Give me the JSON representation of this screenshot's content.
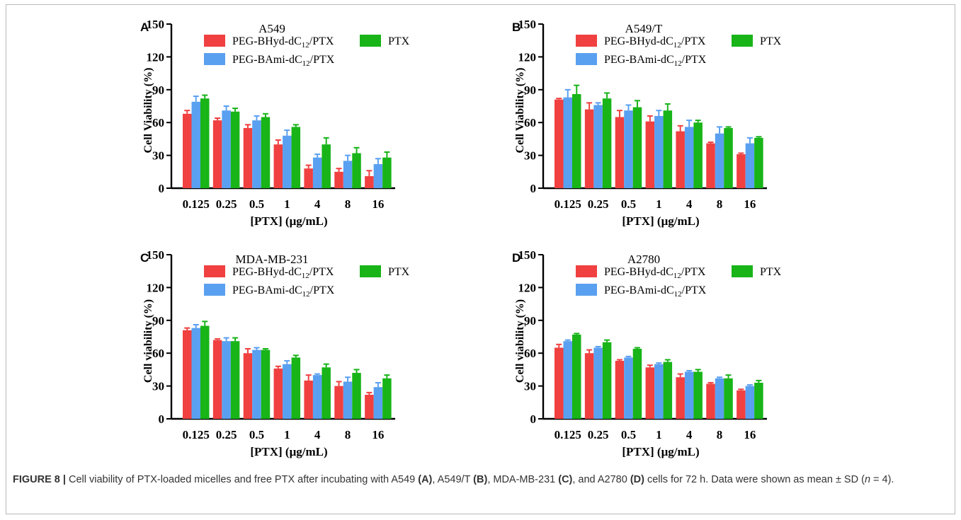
{
  "figure": {
    "caption_label": "FIGURE 8 |",
    "caption_parts": [
      {
        "text": " Cell viability of PTX-loaded micelles and free PTX after incubating with A549 ",
        "bold": false
      },
      {
        "text": "(A)",
        "bold": true
      },
      {
        "text": ", A549/T ",
        "bold": false
      },
      {
        "text": "(B)",
        "bold": true
      },
      {
        "text": ", MDA-MB-231 ",
        "bold": false
      },
      {
        "text": "(C)",
        "bold": true
      },
      {
        "text": ", and A2780 ",
        "bold": false
      },
      {
        "text": "(D)",
        "bold": true
      },
      {
        "text": " cells for 72 h. Data were shown as mean ± SD (",
        "bold": false
      },
      {
        "text": "n",
        "italic": true
      },
      {
        "text": " = 4).",
        "bold": false
      }
    ]
  },
  "colors": {
    "PEG-BHyd-dC12/PTX": "#f04040",
    "PEG-BAmi-dC12/PTX": "#5aa0f0",
    "PTX": "#18b418"
  },
  "chart_data": [
    {
      "type": "bar",
      "panel_letter": "A",
      "title": "A549",
      "xlabel": "[PTX] (μg/mL)",
      "ylabel": "Cell Viability (%)",
      "ylim": [
        0,
        150
      ],
      "yticks": [
        0,
        30,
        60,
        90,
        120,
        150
      ],
      "categories": [
        "0.125",
        "0.25",
        "0.5",
        "1",
        "4",
        "8",
        "16"
      ],
      "series": [
        {
          "name": "PEG-BHyd-dC12/PTX",
          "values": [
            68,
            62,
            55,
            40,
            18,
            15,
            11
          ],
          "errors": [
            3,
            2,
            3,
            4,
            3,
            3,
            5
          ]
        },
        {
          "name": "PEG-BAmi-dC12/PTX",
          "values": [
            79,
            71,
            62,
            48,
            28,
            25,
            22
          ],
          "errors": [
            5,
            4,
            4,
            5,
            3,
            5,
            5
          ]
        },
        {
          "name": "PTX",
          "values": [
            82,
            70,
            65,
            56,
            40,
            32,
            28
          ],
          "errors": [
            3,
            3,
            3,
            2,
            6,
            5,
            5
          ]
        }
      ],
      "legend": "top-right"
    },
    {
      "type": "bar",
      "panel_letter": "B",
      "title": "A549/T",
      "xlabel": "[PTX] (μg/mL)",
      "ylabel": "Cell Viability (%)",
      "ylim": [
        0,
        150
      ],
      "yticks": [
        0,
        30,
        60,
        90,
        120,
        150
      ],
      "categories": [
        "0.125",
        "0.25",
        "0.5",
        "1",
        "4",
        "8",
        "16"
      ],
      "series": [
        {
          "name": "PEG-BHyd-dC12/PTX",
          "values": [
            81,
            72,
            65,
            61,
            52,
            41,
            31
          ],
          "errors": [
            1,
            6,
            6,
            5,
            5,
            1,
            1
          ]
        },
        {
          "name": "PEG-BAmi-dC12/PTX",
          "values": [
            83,
            76,
            71,
            66,
            56,
            50,
            41
          ],
          "errors": [
            7,
            2,
            5,
            5,
            6,
            6,
            5
          ]
        },
        {
          "name": "PTX",
          "values": [
            86,
            82,
            74,
            71,
            60,
            55,
            46
          ],
          "errors": [
            8,
            5,
            6,
            6,
            2,
            1,
            1
          ]
        }
      ],
      "legend": "top-right"
    },
    {
      "type": "bar",
      "panel_letter": "C",
      "title": "MDA-MB-231",
      "xlabel": "[PTX] (μg/mL)",
      "ylabel": "Cell viability (%)",
      "ylim": [
        0,
        150
      ],
      "yticks": [
        0,
        30,
        60,
        90,
        120,
        150
      ],
      "categories": [
        "0.125",
        "0.25",
        "0.5",
        "1",
        "4",
        "8",
        "16"
      ],
      "series": [
        {
          "name": "PEG-BHyd-dC12/PTX",
          "values": [
            81,
            72,
            60,
            46,
            35,
            30,
            22
          ],
          "errors": [
            2,
            1,
            4,
            2,
            5,
            4,
            2
          ]
        },
        {
          "name": "PEG-BAmi-dC12/PTX",
          "values": [
            83,
            71,
            63,
            50,
            40,
            34,
            29
          ],
          "errors": [
            3,
            3,
            2,
            3,
            1,
            4,
            4
          ]
        },
        {
          "name": "PTX",
          "values": [
            85,
            71,
            63,
            56,
            47,
            42,
            37
          ],
          "errors": [
            4,
            3,
            1,
            2,
            3,
            3,
            3
          ]
        }
      ],
      "legend": "top-right"
    },
    {
      "type": "bar",
      "panel_letter": "D",
      "title": "A2780",
      "xlabel": "[PTX] (μg/mL)",
      "ylabel": "Cell viability (%)",
      "ylim": [
        0,
        150
      ],
      "yticks": [
        0,
        30,
        60,
        90,
        120,
        150
      ],
      "categories": [
        "0.125",
        "0.25",
        "0.5",
        "1",
        "4",
        "8",
        "16"
      ],
      "series": [
        {
          "name": "PEG-BHyd-dC12/PTX",
          "values": [
            65,
            60,
            53,
            47,
            38,
            32,
            26
          ],
          "errors": [
            3,
            3,
            1,
            2,
            3,
            1,
            1
          ]
        },
        {
          "name": "PEG-BAmi-dC12/PTX",
          "values": [
            71,
            65,
            56,
            50,
            43,
            37,
            30
          ],
          "errors": [
            1,
            1,
            1,
            1,
            1,
            1,
            1
          ]
        },
        {
          "name": "PTX",
          "values": [
            77,
            70,
            64,
            52,
            43,
            37,
            33
          ],
          "errors": [
            1,
            2,
            1,
            2,
            2,
            3,
            2
          ]
        }
      ],
      "legend": "top-right"
    }
  ]
}
